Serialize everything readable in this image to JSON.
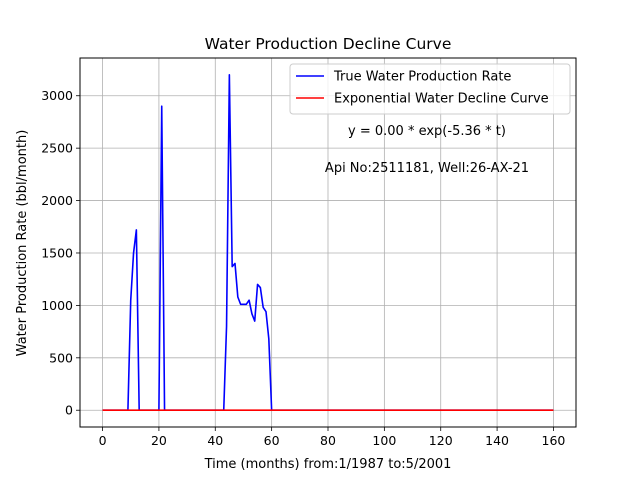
{
  "chart_data": {
    "type": "line",
    "title": "Water Production Decline Curve",
    "xlabel": "Time (months) from:1/1987 to:5/2001",
    "ylabel": "Water Production Rate (bbl/month)",
    "xlim": [
      -8,
      168
    ],
    "ylim": [
      -160,
      3360
    ],
    "xticks": [
      0,
      20,
      40,
      60,
      80,
      100,
      120,
      140,
      160
    ],
    "yticks": [
      0,
      500,
      1000,
      1500,
      2000,
      2500,
      3000
    ],
    "grid": true,
    "legend_position": "top-right",
    "annotations": [
      "y = 0.00 * exp(-5.36 * t)",
      "Api No:2511181, Well:26-AX-21"
    ],
    "colors": {
      "true_rate": "#0000ff",
      "decline_curve": "#ff0000"
    },
    "series": [
      {
        "name": "True Water Production Rate",
        "color": "#0000ff",
        "x": [
          0,
          9,
          10,
          11,
          12,
          13,
          20,
          21,
          22,
          43,
          44,
          45,
          46,
          47,
          48,
          49,
          50,
          51,
          52,
          53,
          54,
          55,
          56,
          57,
          58,
          59,
          60,
          61,
          160
        ],
        "y": [
          0,
          0,
          1050,
          1500,
          1720,
          0,
          0,
          2900,
          0,
          0,
          800,
          3200,
          1370,
          1400,
          1080,
          1010,
          1010,
          1010,
          1050,
          920,
          850,
          1200,
          1170,
          980,
          940,
          680,
          0,
          0,
          0
        ]
      },
      {
        "name": "Exponential Water Decline Curve",
        "color": "#ff0000",
        "x": [
          0,
          160
        ],
        "y": [
          0,
          0
        ]
      }
    ]
  }
}
